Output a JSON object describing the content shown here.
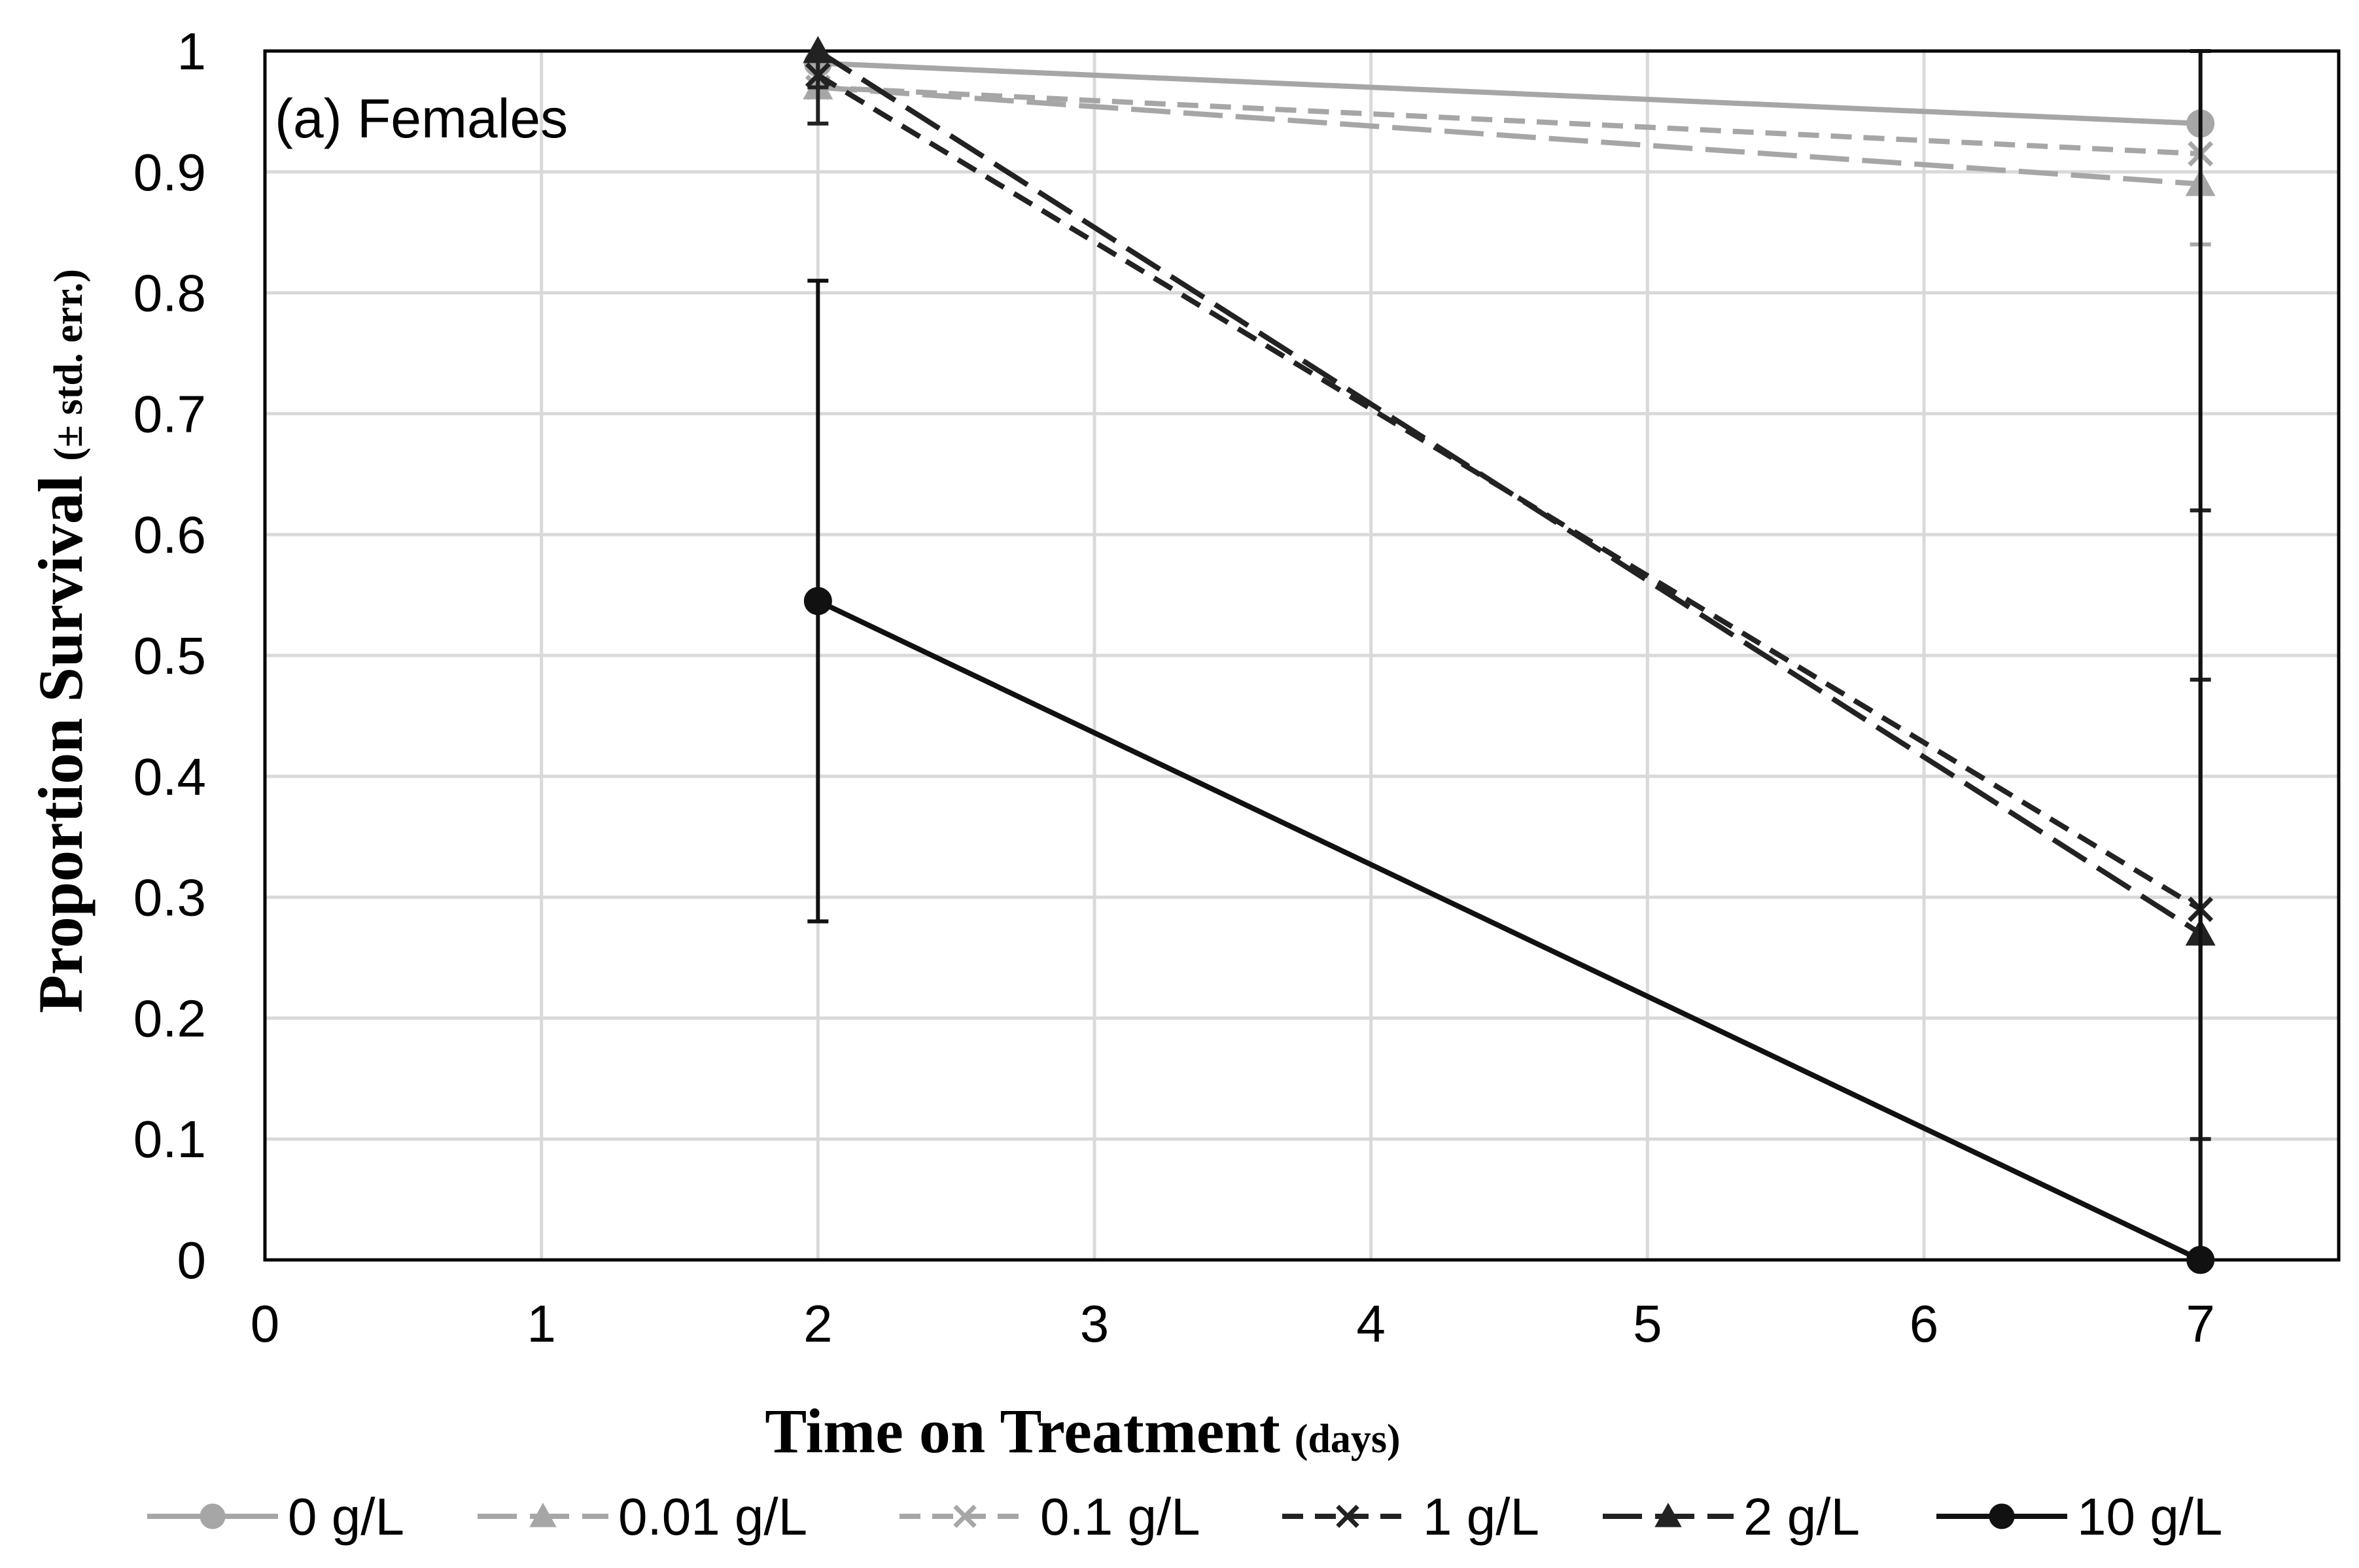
{
  "chart_data": {
    "type": "line",
    "panel_label": "(a) Females",
    "xlabel": "Time on Treatment",
    "xlabel_unit": "(days)",
    "ylabel": "Proportion Survival",
    "ylabel_unit": "(± std. err.)",
    "xlim": [
      0,
      7.5
    ],
    "ylim": [
      0,
      1
    ],
    "x_ticks": [
      "0",
      "1",
      "2",
      "3",
      "4",
      "5",
      "6",
      "7"
    ],
    "y_ticks": [
      "0",
      "0.1",
      "0.2",
      "0.3",
      "0.4",
      "0.5",
      "0.6",
      "0.7",
      "0.8",
      "0.9",
      "1"
    ],
    "grid": true,
    "legend_position": "bottom",
    "x": [
      2,
      7
    ],
    "series": [
      {
        "name": "0 g/L",
        "values": [
          0.99,
          0.94
        ],
        "errors": [
          0.0,
          0.0
        ],
        "color": "#a6a6a6",
        "dash": "solid",
        "marker": "circle"
      },
      {
        "name": "0.01 g/L",
        "values": [
          0.97,
          0.89
        ],
        "errors": [
          0.0,
          0.05
        ],
        "color": "#a6a6a6",
        "dash": "longdash",
        "marker": "triangle"
      },
      {
        "name": "0.1 g/L",
        "values": [
          0.97,
          0.915
        ],
        "errors": [
          0.0,
          0.0
        ],
        "color": "#a6a6a6",
        "dash": "dash",
        "marker": "x"
      },
      {
        "name": "1 g/L",
        "values": [
          0.98,
          0.29
        ],
        "errors": [
          0.04,
          0.19
        ],
        "color": "#222222",
        "dash": "dash",
        "marker": "x"
      },
      {
        "name": "2 g/L",
        "values": [
          1.0,
          0.27
        ],
        "errors": [
          0.03,
          0.35
        ],
        "color": "#222222",
        "dash": "longdash",
        "marker": "triangle"
      },
      {
        "name": "10 g/L",
        "values": [
          0.545,
          0.0
        ],
        "errors": [
          0.265,
          1.0
        ],
        "color": "#111111",
        "dash": "solid",
        "marker": "circle"
      }
    ]
  }
}
